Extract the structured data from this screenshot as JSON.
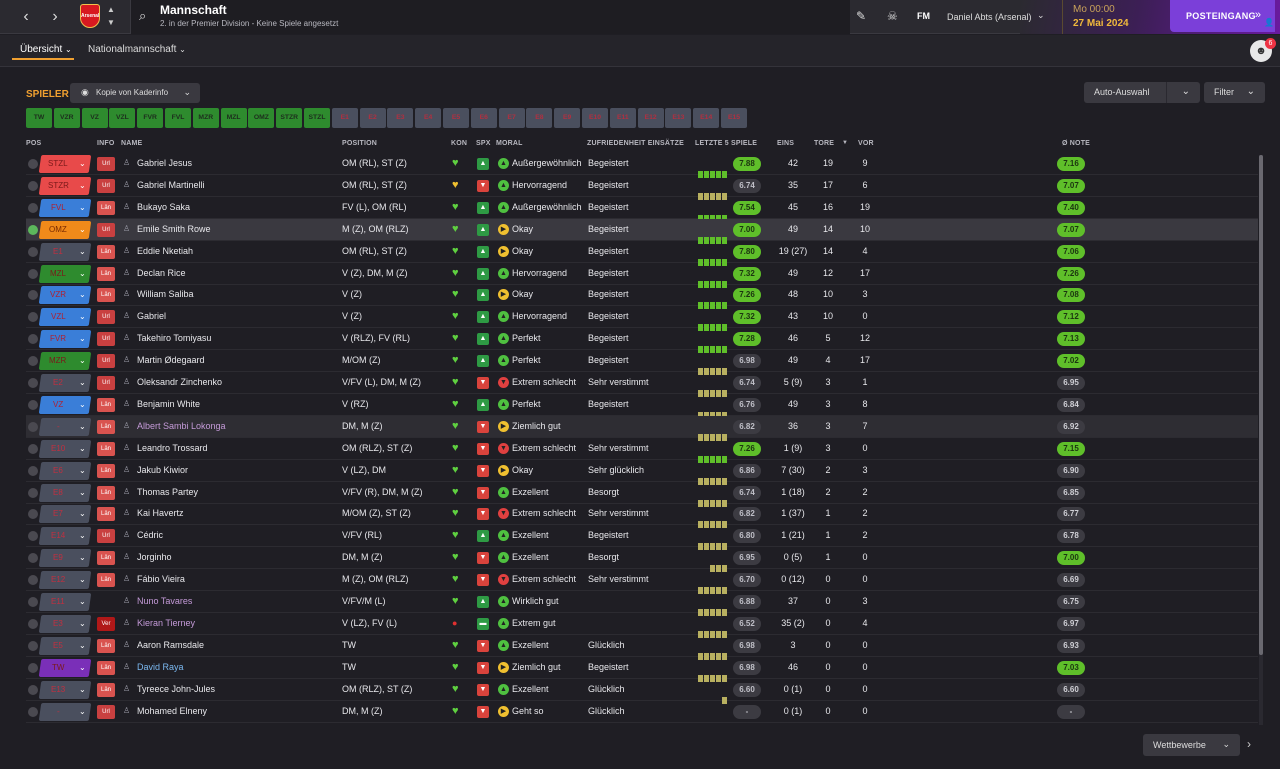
{
  "header": {
    "title": "Mannschaft",
    "subtitle": "2. in der Premier Division - Keine Spiele angesetzt",
    "brand": "FM",
    "manager": "Daniel Abts (Arsenal)",
    "time": "Mo 00:00",
    "date": "27 Mai 2024",
    "inbox": "POSTEINGANG",
    "club_crest_text": "Arsenal",
    "mail_count": "6"
  },
  "tabs": [
    {
      "label": "Übersicht"
    },
    {
      "label": "Nationalmannschaft"
    }
  ],
  "toolbar": {
    "section": "SPIELER",
    "view": "Kopie von Kaderinfo",
    "auto": "Auto-Auswahl",
    "filter": "Filter"
  },
  "slots": [
    "TW",
    "VZR",
    "VZ",
    "VZL",
    "FVR",
    "FVL",
    "MZR",
    "MZL",
    "OMZ",
    "STZR",
    "STZL",
    "E1",
    "E2",
    "E3",
    "E4",
    "E5",
    "E6",
    "E7",
    "E8",
    "E9",
    "E10",
    "E11",
    "E12",
    "E13",
    "E14",
    "E15"
  ],
  "columns": {
    "pos": "POS",
    "info": "INFO",
    "name": "NAME",
    "position": "POSITION",
    "kon": "KON",
    "spx": "SPX",
    "moral": "MORAL",
    "zufr": "ZUFRIEDENHEIT EINSÄTZE",
    "form": "LETZTE 5 SPIELE",
    "eins": "EINS",
    "tore": "TORE",
    "vor": "VOR",
    "note": "Ø NOTE"
  },
  "players": [
    {
      "slot": "STZL",
      "slot_color": "#e84a4a",
      "info": "Url",
      "name": "Gabriel Jesus",
      "position": "OM (RL), ST (Z)",
      "spx": "up",
      "morale": "Außergewöhnlich",
      "zufr": "Begeistert",
      "form": 5,
      "form_rating": "7.88",
      "form_good": true,
      "apps": "42",
      "goals": "19",
      "assists": "9",
      "avg": "7.16",
      "avg_good": true
    },
    {
      "slot": "STZR",
      "slot_color": "#e84a4a",
      "info": "Url",
      "name": "Gabriel Martinelli",
      "position": "OM (RL), ST (Z)",
      "spx": "down",
      "morale": "Hervorragend",
      "zufr": "Begeistert",
      "form": 5,
      "form_rating": "6.74",
      "form_good": false,
      "apps": "35",
      "goals": "17",
      "assists": "6",
      "avg": "7.07",
      "avg_good": true
    },
    {
      "slot": "FVL",
      "slot_color": "#3a7ed8",
      "info": "Län",
      "name": "Bukayo Saka",
      "position": "FV (L), OM (RL)",
      "spx": "up",
      "morale": "Außergewöhnlich",
      "zufr": "Begeistert",
      "form": 5,
      "form_rating": "7.54",
      "form_good": true,
      "apps": "45",
      "goals": "16",
      "assists": "19",
      "avg": "7.40",
      "avg_good": true
    },
    {
      "slot": "OMZ",
      "slot_color": "#f08a1a",
      "info": "Url",
      "name": "Emile Smith Rowe",
      "position": "M (Z), OM (RLZ)",
      "spx": "up",
      "morale": "Okay",
      "zufr": "Begeistert",
      "form": 5,
      "form_rating": "7.00",
      "form_good": true,
      "apps": "49",
      "goals": "14",
      "assists": "10",
      "avg": "7.07",
      "avg_good": true
    },
    {
      "slot": "E1",
      "slot_color": "#4a4f5e",
      "info": "Län",
      "name": "Eddie Nketiah",
      "position": "OM (RL), ST (Z)",
      "spx": "up",
      "morale": "Okay",
      "zufr": "Begeistert",
      "form": 5,
      "form_rating": "7.80",
      "form_good": true,
      "apps": "19 (27)",
      "goals": "14",
      "assists": "4",
      "avg": "7.06",
      "avg_good": true
    },
    {
      "slot": "MZL",
      "slot_color": "#2e8b2e",
      "info": "Län",
      "name": "Declan Rice",
      "position": "V (Z), DM, M (Z)",
      "spx": "up",
      "morale": "Hervorragend",
      "zufr": "Begeistert",
      "form": 5,
      "form_rating": "7.32",
      "form_good": true,
      "apps": "49",
      "goals": "12",
      "assists": "17",
      "avg": "7.26",
      "avg_good": true
    },
    {
      "slot": "VZR",
      "slot_color": "#3a7ed8",
      "info": "Län",
      "name": "William Saliba",
      "position": "V (Z)",
      "spx": "up",
      "morale": "Okay",
      "zufr": "Begeistert",
      "form": 5,
      "form_rating": "7.26",
      "form_good": true,
      "apps": "48",
      "goals": "10",
      "assists": "3",
      "avg": "7.08",
      "avg_good": true
    },
    {
      "slot": "VZL",
      "slot_color": "#3a7ed8",
      "info": "Url",
      "name": "Gabriel",
      "position": "V (Z)",
      "spx": "up",
      "morale": "Hervorragend",
      "zufr": "Begeistert",
      "form": 5,
      "form_rating": "7.32",
      "form_good": true,
      "apps": "43",
      "goals": "10",
      "assists": "0",
      "avg": "7.12",
      "avg_good": true
    },
    {
      "slot": "FVR",
      "slot_color": "#3a7ed8",
      "info": "Url",
      "name": "Takehiro Tomiyasu",
      "position": "V (RLZ), FV (RL)",
      "spx": "up",
      "morale": "Perfekt",
      "zufr": "Begeistert",
      "form": 5,
      "form_rating": "7.28",
      "form_good": true,
      "apps": "46",
      "goals": "5",
      "assists": "12",
      "avg": "7.13",
      "avg_good": true
    },
    {
      "slot": "MZR",
      "slot_color": "#2e8b2e",
      "info": "Url",
      "name": "Martin Ødegaard",
      "position": "M/OM (Z)",
      "spx": "up",
      "morale": "Perfekt",
      "zufr": "Begeistert",
      "form": 5,
      "form_rating": "6.98",
      "form_good": false,
      "apps": "49",
      "goals": "4",
      "assists": "17",
      "avg": "7.02",
      "avg_good": true
    },
    {
      "slot": "E2",
      "slot_color": "#4a4f5e",
      "info": "Url",
      "name": "Oleksandr Zinchenko",
      "position": "V/FV (L), DM, M (Z)",
      "spx": "down",
      "morale": "Extrem schlecht",
      "zufr": "Sehr verstimmt",
      "form": 5,
      "form_rating": "6.74",
      "form_good": false,
      "apps": "5 (9)",
      "goals": "3",
      "assists": "1",
      "avg": "6.95",
      "avg_good": false
    },
    {
      "slot": "VZ",
      "slot_color": "#3a7ed8",
      "info": "Län",
      "name": "Benjamin White",
      "position": "V (RZ)",
      "spx": "up",
      "morale": "Perfekt",
      "zufr": "Begeistert",
      "form": 5,
      "form_rating": "6.76",
      "form_good": false,
      "apps": "49",
      "goals": "3",
      "assists": "8",
      "avg": "6.84",
      "avg_good": false
    },
    {
      "slot": "-",
      "slot_color": "#4a4f5e",
      "info": "Län",
      "name": "Albert Sambi Lokonga",
      "name_style": "lila",
      "position": "DM, M (Z)",
      "spx": "down",
      "morale": "Ziemlich gut",
      "zufr": "",
      "form": 5,
      "form_rating": "6.82",
      "form_good": false,
      "apps": "36",
      "goals": "3",
      "assists": "7",
      "avg": "6.92",
      "avg_good": false
    },
    {
      "slot": "E10",
      "slot_color": "#4a4f5e",
      "info": "Län",
      "name": "Leandro Trossard",
      "position": "OM (RLZ), ST (Z)",
      "spx": "down",
      "morale": "Extrem schlecht",
      "zufr": "Sehr verstimmt",
      "form": 5,
      "form_rating": "7.26",
      "form_good": true,
      "apps": "1 (9)",
      "goals": "3",
      "assists": "0",
      "avg": "7.15",
      "avg_good": true
    },
    {
      "slot": "E6",
      "slot_color": "#4a4f5e",
      "info": "Län",
      "name": "Jakub Kiwior",
      "position": "V (LZ), DM",
      "spx": "down",
      "morale": "Okay",
      "zufr": "Sehr glücklich",
      "form": 5,
      "form_rating": "6.86",
      "form_good": false,
      "apps": "7 (30)",
      "goals": "2",
      "assists": "3",
      "avg": "6.90",
      "avg_good": false
    },
    {
      "slot": "E8",
      "slot_color": "#4a4f5e",
      "info": "Län",
      "name": "Thomas Partey",
      "position": "V/FV (R), DM, M (Z)",
      "spx": "down",
      "morale": "Exzellent",
      "zufr": "Besorgt",
      "form": 5,
      "form_rating": "6.74",
      "form_good": false,
      "apps": "1 (18)",
      "goals": "2",
      "assists": "2",
      "avg": "6.85",
      "avg_good": false
    },
    {
      "slot": "E7",
      "slot_color": "#4a4f5e",
      "info": "Län",
      "name": "Kai Havertz",
      "position": "M/OM (Z), ST (Z)",
      "spx": "down",
      "morale": "Extrem schlecht",
      "zufr": "Sehr verstimmt",
      "form": 5,
      "form_rating": "6.82",
      "form_good": false,
      "apps": "1 (37)",
      "goals": "1",
      "assists": "2",
      "avg": "6.77",
      "avg_good": false
    },
    {
      "slot": "E14",
      "slot_color": "#4a4f5e",
      "info": "Url",
      "name": "Cédric",
      "position": "V/FV (RL)",
      "spx": "up",
      "morale": "Exzellent",
      "zufr": "Begeistert",
      "form": 5,
      "form_rating": "6.80",
      "form_good": false,
      "apps": "1 (21)",
      "goals": "1",
      "assists": "2",
      "avg": "6.78",
      "avg_good": false
    },
    {
      "slot": "E9",
      "slot_color": "#4a4f5e",
      "info": "Län",
      "name": "Jorginho",
      "position": "DM, M (Z)",
      "spx": "down",
      "morale": "Exzellent",
      "zufr": "Besorgt",
      "form": 3,
      "form_rating": "6.95",
      "form_good": false,
      "apps": "0 (5)",
      "goals": "1",
      "assists": "0",
      "avg": "7.00",
      "avg_good": true
    },
    {
      "slot": "E12",
      "slot_color": "#4a4f5e",
      "info": "Län",
      "name": "Fábio Vieira",
      "position": "M (Z), OM (RLZ)",
      "spx": "down",
      "morale": "Extrem schlecht",
      "zufr": "Sehr verstimmt",
      "form": 5,
      "form_rating": "6.70",
      "form_good": false,
      "apps": "0 (12)",
      "goals": "0",
      "assists": "0",
      "avg": "6.69",
      "avg_good": false
    },
    {
      "slot": "E11",
      "slot_color": "#4a4f5e",
      "info": "",
      "name": "Nuno Tavares",
      "name_style": "lila",
      "position": "V/FV/M (L)",
      "spx": "up",
      "morale": "Wirklich gut",
      "zufr": "",
      "form": 5,
      "form_rating": "6.88",
      "form_good": false,
      "apps": "37",
      "goals": "0",
      "assists": "3",
      "avg": "6.75",
      "avg_good": false
    },
    {
      "slot": "E3",
      "slot_color": "#4a4f5e",
      "info": "Ver",
      "name": "Kieran Tierney",
      "name_style": "lila",
      "position": "V (LZ), FV (L)",
      "spx": "flat",
      "morale": "Extrem gut",
      "zufr": "",
      "form": 5,
      "form_rating": "6.52",
      "form_good": false,
      "apps": "35 (2)",
      "goals": "0",
      "assists": "4",
      "avg": "6.97",
      "avg_good": false,
      "injury": true
    },
    {
      "slot": "E5",
      "slot_color": "#4a4f5e",
      "info": "Län",
      "name": "Aaron Ramsdale",
      "position": "TW",
      "spx": "down",
      "morale": "Exzellent",
      "zufr": "Glücklich",
      "form": 5,
      "form_rating": "6.98",
      "form_good": false,
      "apps": "3",
      "goals": "0",
      "assists": "0",
      "avg": "6.93",
      "avg_good": false
    },
    {
      "slot": "TW",
      "slot_color": "#7a2fb8",
      "info": "Län",
      "name": "David Raya",
      "name_style": "blue",
      "position": "TW",
      "spx": "down",
      "morale": "Ziemlich gut",
      "zufr": "Begeistert",
      "form": 5,
      "form_rating": "6.98",
      "form_good": false,
      "apps": "46",
      "goals": "0",
      "assists": "0",
      "avg": "7.03",
      "avg_good": true
    },
    {
      "slot": "E13",
      "slot_color": "#4a4f5e",
      "info": "Län",
      "name": "Tyreece John-Jules",
      "position": "OM (RLZ), ST (Z)",
      "spx": "down",
      "morale": "Exzellent",
      "zufr": "Glücklich",
      "form": 1,
      "form_rating": "6.60",
      "form_good": false,
      "apps": "0 (1)",
      "goals": "0",
      "assists": "0",
      "avg": "6.60",
      "avg_good": false
    },
    {
      "slot": "-",
      "slot_color": "#4a4f5e",
      "info": "Url",
      "name": "Mohamed Elneny",
      "position": "DM, M (Z)",
      "spx": "down",
      "morale": "Geht so",
      "zufr": "Glücklich",
      "form": 0,
      "form_rating": "-",
      "form_good": false,
      "apps": "0 (1)",
      "goals": "0",
      "assists": "0",
      "avg": "-",
      "avg_good": false
    }
  ],
  "footer": {
    "competitions": "Wettbewerbe"
  },
  "colors": {
    "accent": "#f0a030",
    "inbox": "#7b3fd9",
    "good_rating": "#5fbf2a"
  }
}
